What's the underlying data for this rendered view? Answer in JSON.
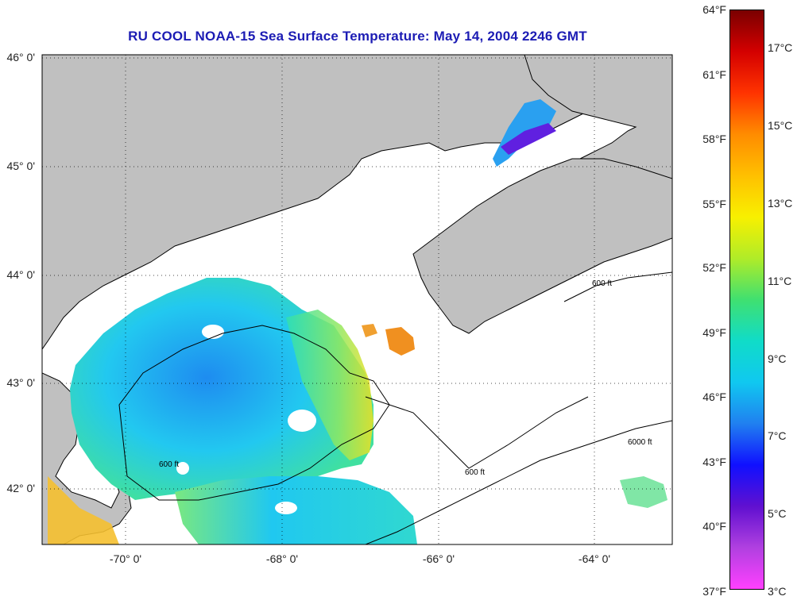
{
  "title": "RU COOL  NOAA-15  Sea Surface Temperature:  May 14, 2004 2246 GMT",
  "lat_labels": [
    "46° 0'",
    "45° 0'",
    "44° 0'",
    "43° 0'",
    "42° 0'"
  ],
  "lon_labels": [
    "-70° 0'",
    "-68° 0'",
    "-66° 0'",
    "-64° 0'"
  ],
  "contour_labels": [
    "600 ft",
    "6000 ft"
  ],
  "colorbar": {
    "fahrenheit": [
      "64°F",
      "61°F",
      "58°F",
      "55°F",
      "52°F",
      "49°F",
      "46°F",
      "43°F",
      "40°F",
      "37°F"
    ],
    "celsius": [
      "17°C",
      "15°C",
      "13°C",
      "11°C",
      "9°C",
      "7°C",
      "5°C",
      "3°C"
    ],
    "colors": [
      "#7a0000",
      "#d40000",
      "#ff3300",
      "#ff8c00",
      "#ffc000",
      "#f8f000",
      "#b0ec28",
      "#40e070",
      "#10dcc8",
      "#10c8f0",
      "#2080f0",
      "#1010ff",
      "#6010d0",
      "#b040e0",
      "#ff40ff"
    ]
  },
  "colors": {
    "land": "#c0c0c0",
    "cloud": "#ffffff",
    "title": "#1c1cb4"
  }
}
